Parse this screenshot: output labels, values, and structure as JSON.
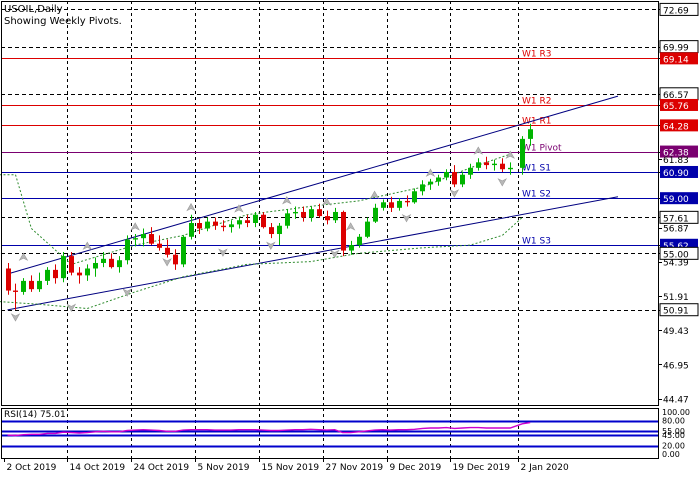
{
  "header": {
    "symbol_title": "USOIL,Daily",
    "subtitle": "Showing Weekly Pivots."
  },
  "colors": {
    "background": "#ffffff",
    "frame": "#000000",
    "bull_candle": "#00b400",
    "bear_candle": "#dc0000",
    "resistance_line": "#dc0000",
    "support_line": "#0000aa",
    "pivot_line": "#7a0070",
    "channel_line": "#000080",
    "grid": "#000000",
    "envelope": "#2e8b2e",
    "rsi_line": "#cc00cc",
    "rsi_level": "#0000cc"
  },
  "chart_data": [
    {
      "type": "candlestick",
      "title": "USOIL,Daily",
      "subtitle": "Showing Weekly Pivots.",
      "ylim": [
        44.0,
        73.3
      ],
      "price_ticks": [
        "72.69",
        "69.99",
        "69.14",
        "66.57",
        "65.76",
        "64.28",
        "62.38",
        "61.83",
        "60.90",
        "59.00",
        "57.61",
        "56.87",
        "55.62",
        "55.00",
        "54.39",
        "51.91",
        "50.91",
        "49.43",
        "46.95",
        "44.47"
      ],
      "x_labels": [
        "2 Oct 2019",
        "14 Oct 2019",
        "24 Oct 2019",
        "5 Nov 2019",
        "15 Nov 2019",
        "27 Nov 2019",
        "9 Dec 2019",
        "19 Dec 2019",
        "2 Jan 2020"
      ],
      "label_candle_index": [
        0,
        8,
        16,
        24,
        32,
        40,
        48,
        56,
        64
      ],
      "candles": [
        [
          53.9,
          54.3,
          52.0,
          52.3
        ],
        [
          52.3,
          52.8,
          50.9,
          52.2
        ],
        [
          52.2,
          53.2,
          52.0,
          53.0
        ],
        [
          53.0,
          53.4,
          52.2,
          52.4
        ],
        [
          52.4,
          53.6,
          52.2,
          53.0
        ],
        [
          53.0,
          54.0,
          52.7,
          53.8
        ],
        [
          53.8,
          54.2,
          52.8,
          53.2
        ],
        [
          53.2,
          55.1,
          52.9,
          54.8
        ],
        [
          54.8,
          55.1,
          53.4,
          53.6
        ],
        [
          53.6,
          54.0,
          52.8,
          53.4
        ],
        [
          53.4,
          54.2,
          53.0,
          53.9
        ],
        [
          53.9,
          54.7,
          53.3,
          54.3
        ],
        [
          54.3,
          55.1,
          54.0,
          54.6
        ],
        [
          54.6,
          55.0,
          53.9,
          54.0
        ],
        [
          54.0,
          54.8,
          53.6,
          54.5
        ],
        [
          54.5,
          56.3,
          54.2,
          56.0
        ],
        [
          56.0,
          56.4,
          55.5,
          56.1
        ],
        [
          56.1,
          56.8,
          55.5,
          56.4
        ],
        [
          56.4,
          56.9,
          55.6,
          55.7
        ],
        [
          55.7,
          56.3,
          55.2,
          55.4
        ],
        [
          55.4,
          56.0,
          54.7,
          54.9
        ],
        [
          54.9,
          55.3,
          53.8,
          54.2
        ],
        [
          54.2,
          56.3,
          54.0,
          56.2
        ],
        [
          56.2,
          57.8,
          56.0,
          57.2
        ],
        [
          57.2,
          57.5,
          56.4,
          56.8
        ],
        [
          56.8,
          57.6,
          56.6,
          57.3
        ],
        [
          57.3,
          57.6,
          56.7,
          57.0
        ],
        [
          57.0,
          57.4,
          56.6,
          56.9
        ],
        [
          56.9,
          57.4,
          56.5,
          57.1
        ],
        [
          57.1,
          57.6,
          56.8,
          57.4
        ],
        [
          57.4,
          57.8,
          56.9,
          57.2
        ],
        [
          57.2,
          58.0,
          56.9,
          57.8
        ],
        [
          57.8,
          58.0,
          56.8,
          56.9
        ],
        [
          56.9,
          57.2,
          56.1,
          56.4
        ],
        [
          56.4,
          57.2,
          55.6,
          57.0
        ],
        [
          57.0,
          58.2,
          56.8,
          57.9
        ],
        [
          57.9,
          58.4,
          57.5,
          58.0
        ],
        [
          58.0,
          58.4,
          57.3,
          57.6
        ],
        [
          57.6,
          58.4,
          57.3,
          58.2
        ],
        [
          58.2,
          58.6,
          57.6,
          57.7
        ],
        [
          57.7,
          58.1,
          57.1,
          57.4
        ],
        [
          57.4,
          58.3,
          57.2,
          58.0
        ],
        [
          58.0,
          58.1,
          54.8,
          55.2
        ],
        [
          55.2,
          55.9,
          54.9,
          55.6
        ],
        [
          55.6,
          56.4,
          55.4,
          56.2
        ],
        [
          56.2,
          57.6,
          56.1,
          57.3
        ],
        [
          57.3,
          58.6,
          57.2,
          58.3
        ],
        [
          58.3,
          58.9,
          58.1,
          58.7
        ],
        [
          58.7,
          59.1,
          58.0,
          58.3
        ],
        [
          58.3,
          59.0,
          58.1,
          58.8
        ],
        [
          58.8,
          59.2,
          58.4,
          58.7
        ],
        [
          58.7,
          59.7,
          58.6,
          59.5
        ],
        [
          59.5,
          60.3,
          59.2,
          60.0
        ],
        [
          60.0,
          60.4,
          59.6,
          60.2
        ],
        [
          60.2,
          60.7,
          59.9,
          60.5
        ],
        [
          60.5,
          61.1,
          60.3,
          60.9
        ],
        [
          60.9,
          61.4,
          59.8,
          60.0
        ],
        [
          60.0,
          60.9,
          59.8,
          60.7
        ],
        [
          60.7,
          61.5,
          60.4,
          61.2
        ],
        [
          61.2,
          61.9,
          61.0,
          61.6
        ],
        [
          61.6,
          62.0,
          61.1,
          61.4
        ],
        [
          61.4,
          61.8,
          61.0,
          61.5
        ],
        [
          61.5,
          61.9,
          60.9,
          61.1
        ],
        [
          61.1,
          61.6,
          60.7,
          61.2
        ],
        [
          61.2,
          63.5,
          60.7,
          63.3
        ],
        [
          63.3,
          64.4,
          62.8,
          64.0
        ]
      ],
      "pivot_levels": [
        {
          "name": "W1 R3",
          "value": 69.14,
          "kind": "resistance"
        },
        {
          "name": "W1 R2",
          "value": 65.76,
          "kind": "resistance"
        },
        {
          "name": "W1 R1",
          "value": 64.28,
          "kind": "resistance"
        },
        {
          "name": "W1 Pivot",
          "value": 62.38,
          "kind": "pivot"
        },
        {
          "name": "W1 S1",
          "value": 60.9,
          "kind": "support"
        },
        {
          "name": "W1 S2",
          "value": 59.0,
          "kind": "support"
        },
        {
          "name": "W1 S3",
          "value": 55.62,
          "kind": "support"
        }
      ],
      "dashed_levels": [
        72.69,
        69.99,
        66.57,
        57.61,
        55.0,
        50.91
      ],
      "highlighted_ticks": [
        {
          "value": "69.14",
          "kind": "resistance"
        },
        {
          "value": "65.76",
          "kind": "resistance"
        },
        {
          "value": "64.28",
          "kind": "resistance"
        },
        {
          "value": "62.38",
          "kind": "pivot"
        },
        {
          "value": "60.90",
          "kind": "support"
        },
        {
          "value": "59.00",
          "kind": "support"
        },
        {
          "value": "55.62",
          "kind": "support"
        }
      ],
      "boxed_ticks": [
        "72.69",
        "69.99",
        "66.57",
        "57.61",
        "55.00",
        "50.91"
      ],
      "channel_upper": [
        [
          0,
          53.5
        ],
        [
          76,
          66.4
        ]
      ],
      "channel_lower": [
        [
          0,
          50.9
        ],
        [
          76,
          59.1
        ]
      ],
      "envelope_upper": [
        [
          -1,
          60.7
        ],
        [
          1,
          60.7
        ],
        [
          3,
          56.8
        ],
        [
          8,
          54.2
        ],
        [
          16,
          55.6
        ],
        [
          22,
          56.3
        ],
        [
          30,
          57.8
        ],
        [
          38,
          58.4
        ],
        [
          44,
          58.8
        ],
        [
          52,
          59.8
        ],
        [
          58,
          61.2
        ],
        [
          63,
          62.2
        ]
      ],
      "envelope_lower": [
        [
          -1,
          51.5
        ],
        [
          4,
          51.3
        ],
        [
          10,
          51.0
        ],
        [
          16,
          52.2
        ],
        [
          22,
          53.3
        ],
        [
          30,
          54.2
        ],
        [
          38,
          54.4
        ],
        [
          44,
          55.0
        ],
        [
          52,
          55.4
        ],
        [
          58,
          55.6
        ],
        [
          62,
          56.3
        ],
        [
          64,
          57.6
        ]
      ],
      "fractals_up": [
        [
          2,
          54.5
        ],
        [
          10,
          55.3
        ],
        [
          16,
          56.7
        ],
        [
          23,
          58.1
        ],
        [
          29,
          58.0
        ],
        [
          35,
          58.6
        ],
        [
          40,
          58.5
        ],
        [
          43,
          56.7
        ],
        [
          46,
          59.0
        ],
        [
          53,
          60.6
        ],
        [
          59,
          62.2
        ],
        [
          63,
          61.9
        ]
      ],
      "fractals_down": [
        [
          1,
          50.6
        ],
        [
          8,
          51.3
        ],
        [
          15,
          52.4
        ],
        [
          20,
          54.6
        ],
        [
          27,
          55.3
        ],
        [
          33,
          55.8
        ],
        [
          41,
          55.2
        ],
        [
          50,
          57.8
        ],
        [
          56,
          59.6
        ],
        [
          62,
          60.4
        ]
      ],
      "gap_after_index": 64
    },
    {
      "type": "line",
      "title": "RSI(14) 75.01",
      "current_value": 75.01,
      "ylim": [
        -10,
        110
      ],
      "levels": [
        80.0,
        55.0,
        45.0,
        20.0
      ],
      "axis_labels": [
        "100.00",
        "80.00",
        "55.00",
        "45.00",
        "20.00",
        "0.00"
      ],
      "values": [
        45,
        44,
        46,
        47,
        47,
        49,
        49,
        52,
        51,
        50,
        51,
        53,
        54,
        53,
        53,
        56,
        57,
        58,
        57,
        56,
        54,
        54,
        57,
        58,
        58,
        58,
        57,
        57,
        57,
        58,
        58,
        58,
        57,
        56,
        56,
        57,
        58,
        58,
        59,
        58,
        57,
        58,
        51,
        51,
        53,
        55,
        57,
        58,
        57,
        58,
        58,
        59,
        61,
        62,
        62,
        63,
        61,
        62,
        63,
        63,
        62,
        62,
        62,
        62,
        72,
        75
      ]
    }
  ]
}
